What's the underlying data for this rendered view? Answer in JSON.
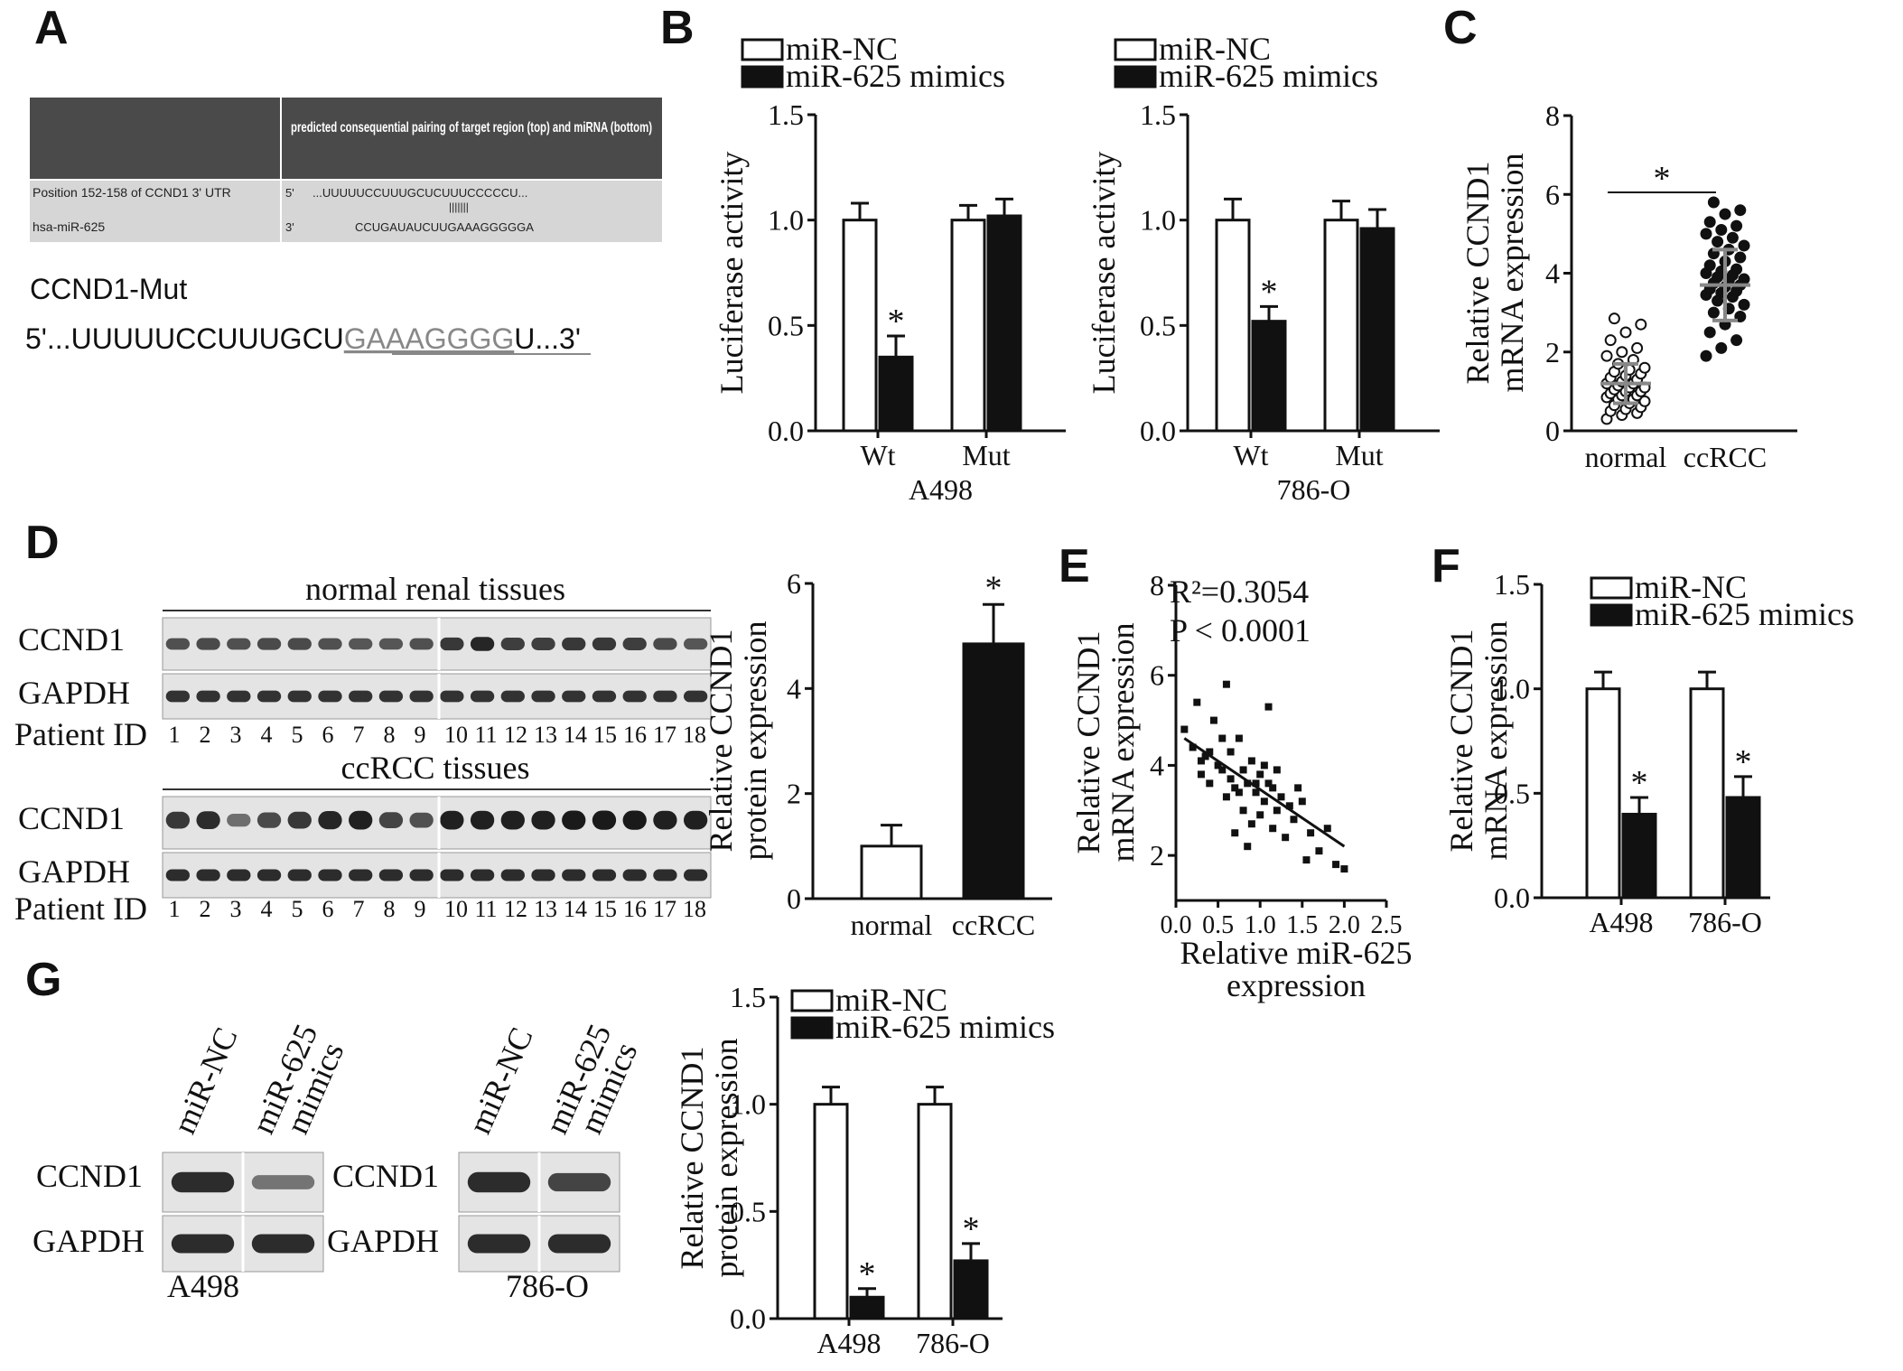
{
  "panels": {
    "A": {
      "letter": "A",
      "table_header": "predicted consequential pairing of target region (top) and miRNA (bottom)",
      "row1_label": "Position 152-158 of CCND1 3' UTR",
      "row1_prime": "5'",
      "row1_seq": "...UUUUUCCUUUGCUCUUUCCCCCU...",
      "pairing": "|||||||",
      "row2_label": "hsa-miR-625",
      "row2_prime": "3'",
      "row2_seq": "CCUGAUAUCUUGAAAGGGGGA",
      "mut_title": "CCND1-Mut",
      "mut_prefix": "5'...UUUUUCCUUUGCU",
      "mut_underlined": "GAAAGGGG",
      "mut_suffix": "U...3'"
    },
    "B": {
      "letter": "B"
    },
    "C": {
      "letter": "C"
    },
    "D": {
      "letter": "D",
      "normal_title": "normal renal tissues",
      "ccrcc_title": "ccRCC tissues",
      "ccnd1": "CCND1",
      "gapdh": "GAPDH",
      "patient_id": "Patient ID",
      "ids": [
        "1",
        "2",
        "3",
        "4",
        "5",
        "6",
        "7",
        "8",
        "9",
        "10",
        "11",
        "12",
        "13",
        "14",
        "15",
        "16",
        "17",
        "18"
      ]
    },
    "E": {
      "letter": "E",
      "r2": "R²=0.3054",
      "p": "P < 0.0001"
    },
    "F": {
      "letter": "F"
    },
    "G": {
      "letter": "G",
      "lane1": "miR-NC",
      "lane2a": "miR-625",
      "lane2b": "mimics",
      "ccnd1": "CCND1",
      "gapdh": "GAPDH",
      "cell1": "A498",
      "cell2": "786-O"
    }
  },
  "legend": {
    "nc": "miR-NC",
    "mimics": "miR-625 mimics"
  },
  "colors": {
    "nc_fill": "#ffffff",
    "mimics_fill": "#111111",
    "header_bg": "#4a4a4a",
    "row_bg": "#d6d6d6",
    "scatter_gray": "#888888"
  },
  "chart_data": [
    {
      "id": "B-A498",
      "type": "bar",
      "xlabel": "A498",
      "ylabel": "Luciferase activity",
      "ylim": [
        0,
        1.5
      ],
      "yticks": [
        "0.0",
        "0.5",
        "1.0",
        "1.5"
      ],
      "categories": [
        "Wt",
        "Mut"
      ],
      "series": [
        {
          "name": "miR-NC",
          "values": [
            1.0,
            1.0
          ],
          "errors": [
            0.08,
            0.07
          ]
        },
        {
          "name": "miR-625 mimics",
          "values": [
            0.35,
            1.02
          ],
          "errors": [
            0.1,
            0.08
          ]
        }
      ],
      "significance": [
        "*",
        ""
      ]
    },
    {
      "id": "B-786O",
      "type": "bar",
      "xlabel": "786-O",
      "ylabel": "Luciferase activity",
      "ylim": [
        0,
        1.5
      ],
      "yticks": [
        "0.0",
        "0.5",
        "1.0",
        "1.5"
      ],
      "categories": [
        "Wt",
        "Mut"
      ],
      "series": [
        {
          "name": "miR-NC",
          "values": [
            1.0,
            1.0
          ],
          "errors": [
            0.1,
            0.09
          ]
        },
        {
          "name": "miR-625 mimics",
          "values": [
            0.52,
            0.96
          ],
          "errors": [
            0.07,
            0.09
          ]
        }
      ],
      "significance": [
        "*",
        ""
      ]
    },
    {
      "id": "C",
      "type": "scatter",
      "ylabel": "Relative CCND1 mRNA expression",
      "ylim": [
        0,
        8
      ],
      "yticks": [
        "0",
        "2",
        "4",
        "6",
        "8"
      ],
      "categories": [
        "normal",
        "ccRCC"
      ],
      "groups": [
        {
          "name": "normal",
          "mean": 1.2,
          "sd": 0.5,
          "values": [
            0.3,
            0.4,
            0.45,
            0.5,
            0.55,
            0.6,
            0.65,
            0.7,
            0.75,
            0.8,
            0.8,
            0.85,
            0.9,
            0.9,
            0.95,
            1.0,
            1.0,
            1.05,
            1.1,
            1.1,
            1.15,
            1.2,
            1.2,
            1.25,
            1.3,
            1.35,
            1.4,
            1.45,
            1.5,
            1.55,
            1.6,
            1.7,
            1.8,
            1.9,
            2.0,
            2.1,
            2.3,
            2.5,
            2.7,
            2.85
          ]
        },
        {
          "name": "ccRCC",
          "mean": 3.7,
          "sd": 0.9,
          "values": [
            1.9,
            2.1,
            2.3,
            2.5,
            2.7,
            2.9,
            3.0,
            3.1,
            3.2,
            3.3,
            3.4,
            3.45,
            3.5,
            3.55,
            3.6,
            3.65,
            3.7,
            3.75,
            3.8,
            3.85,
            3.9,
            3.95,
            4.0,
            4.05,
            4.1,
            4.2,
            4.3,
            4.4,
            4.5,
            4.6,
            4.7,
            4.8,
            4.9,
            5.0,
            5.1,
            5.2,
            5.3,
            5.5,
            5.6,
            5.8
          ]
        }
      ],
      "significance": "*"
    },
    {
      "id": "D-bar",
      "type": "bar",
      "ylabel": "Relative CCND1 protein expression",
      "ylim": [
        0,
        6
      ],
      "yticks": [
        "0",
        "2",
        "4",
        "6"
      ],
      "categories": [
        "normal",
        "ccRCC"
      ],
      "values": [
        1.0,
        4.85
      ],
      "errors": [
        0.4,
        0.75
      ],
      "significance": [
        "",
        "*"
      ]
    },
    {
      "id": "E",
      "type": "scatter",
      "xlabel": "Relative miR-625 expression",
      "ylabel": "Relative CCND1 mRNA expression",
      "xlim": [
        0,
        2.5
      ],
      "ylim": [
        1,
        8
      ],
      "xticks": [
        "0.0",
        "0.5",
        "1.0",
        "1.5",
        "2.0",
        "2.5"
      ],
      "yticks": [
        "2",
        "4",
        "6",
        "8"
      ],
      "fit_line": [
        [
          0.1,
          4.6
        ],
        [
          2.0,
          2.2
        ]
      ],
      "points": [
        [
          0.1,
          4.8
        ],
        [
          0.2,
          4.4
        ],
        [
          0.25,
          5.4
        ],
        [
          0.3,
          3.8
        ],
        [
          0.35,
          4.2
        ],
        [
          0.4,
          3.6
        ],
        [
          0.45,
          5.0
        ],
        [
          0.5,
          4.0
        ],
        [
          0.55,
          3.9
        ],
        [
          0.6,
          5.8
        ],
        [
          0.6,
          3.3
        ],
        [
          0.65,
          4.3
        ],
        [
          0.7,
          3.5
        ],
        [
          0.7,
          2.5
        ],
        [
          0.75,
          4.6
        ],
        [
          0.8,
          3.9
        ],
        [
          0.8,
          3.0
        ],
        [
          0.85,
          3.6
        ],
        [
          0.9,
          4.1
        ],
        [
          0.9,
          2.7
        ],
        [
          0.95,
          3.4
        ],
        [
          1.0,
          3.8
        ],
        [
          1.0,
          2.9
        ],
        [
          1.05,
          3.2
        ],
        [
          1.1,
          3.6
        ],
        [
          1.1,
          5.3
        ],
        [
          1.15,
          2.6
        ],
        [
          1.2,
          3.9
        ],
        [
          1.2,
          3.0
        ],
        [
          1.25,
          3.3
        ],
        [
          1.3,
          2.4
        ],
        [
          1.35,
          3.1
        ],
        [
          1.4,
          2.8
        ],
        [
          1.5,
          3.2
        ],
        [
          1.55,
          1.9
        ],
        [
          1.6,
          2.5
        ],
        [
          1.7,
          2.1
        ],
        [
          1.8,
          2.6
        ],
        [
          1.9,
          1.8
        ],
        [
          2.0,
          1.7
        ],
        [
          0.4,
          4.3
        ],
        [
          0.55,
          4.6
        ],
        [
          0.75,
          3.4
        ],
        [
          0.85,
          2.2
        ],
        [
          0.95,
          3.6
        ],
        [
          1.05,
          4.0
        ],
        [
          1.45,
          3.5
        ],
        [
          0.65,
          3.7
        ],
        [
          0.3,
          4.1
        ],
        [
          1.15,
          3.5
        ]
      ]
    },
    {
      "id": "F",
      "type": "bar",
      "ylabel": "Relative CCND1 mRNA expression",
      "ylim": [
        0,
        1.5
      ],
      "yticks": [
        "0.0",
        "0.5",
        "1.0",
        "1.5"
      ],
      "categories": [
        "A498",
        "786-O"
      ],
      "series": [
        {
          "name": "miR-NC",
          "values": [
            1.0,
            1.0
          ],
          "errors": [
            0.08,
            0.08
          ]
        },
        {
          "name": "miR-625 mimics",
          "values": [
            0.4,
            0.48
          ],
          "errors": [
            0.08,
            0.1
          ]
        }
      ],
      "significance": [
        "*",
        "*"
      ]
    },
    {
      "id": "G-bar",
      "type": "bar",
      "ylabel": "Relative CCND1 protein expression",
      "ylim": [
        0,
        1.5
      ],
      "yticks": [
        "0.0",
        "0.5",
        "1.0",
        "1.5"
      ],
      "categories": [
        "A498",
        "786-O"
      ],
      "series": [
        {
          "name": "miR-NC",
          "values": [
            1.0,
            1.0
          ],
          "errors": [
            0.08,
            0.08
          ]
        },
        {
          "name": "miR-625 mimics",
          "values": [
            0.1,
            0.27
          ],
          "errors": [
            0.04,
            0.08
          ]
        }
      ],
      "significance": [
        "*",
        "*"
      ]
    }
  ]
}
